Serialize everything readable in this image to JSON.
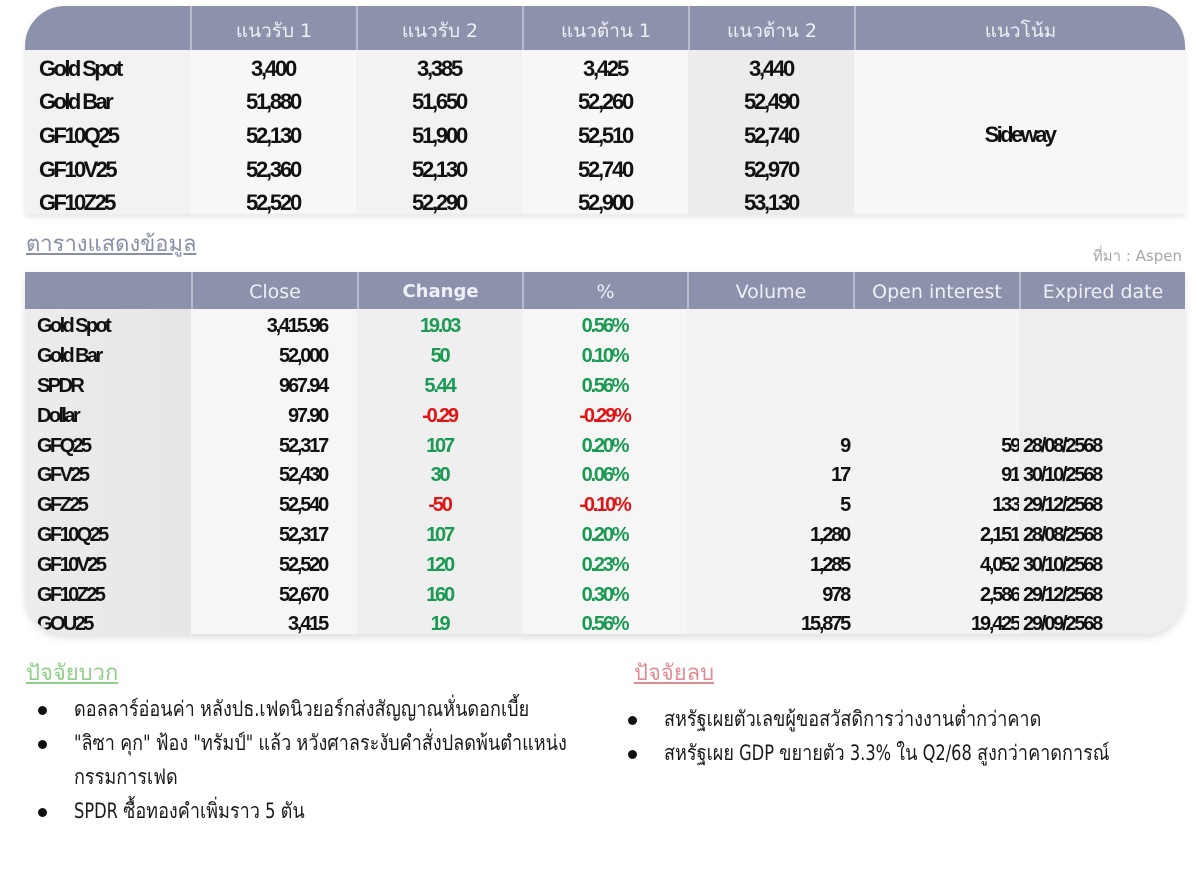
{
  "levels_table": {
    "headers": [
      "",
      "แนวรับ 1",
      "แนวรับ 2",
      "แนวต้าน 1",
      "แนวต้าน 2",
      "แนวโน้ม"
    ],
    "rows": [
      {
        "name": "Gold Spot",
        "support1": "3,400",
        "support2": "3,385",
        "resistance1": "3,425",
        "resistance2": "3,440"
      },
      {
        "name": "Gold Bar",
        "support1": "51,880",
        "support2": "51,650",
        "resistance1": "52,260",
        "resistance2": "52,490"
      },
      {
        "name": "GF10Q25",
        "support1": "52,130",
        "support2": "51,900",
        "resistance1": "52,510",
        "resistance2": "52,740"
      },
      {
        "name": "GF10V25",
        "support1": "52,360",
        "support2": "52,130",
        "resistance1": "52,740",
        "resistance2": "52,970"
      },
      {
        "name": "GF10Z25",
        "support1": "52,520",
        "support2": "52,290",
        "resistance1": "52,900",
        "resistance2": "53,130"
      }
    ],
    "trend": "Sideway"
  },
  "data_section": {
    "title": "ตารางแสดงข้อมูล",
    "source": "ที่มา : Aspen"
  },
  "market_table": {
    "headers": [
      "",
      "Close",
      "Change",
      "%",
      "Volume",
      "Open interest",
      "Expired date"
    ],
    "rows": [
      {
        "name": "Gold Spot",
        "close": "3,415.96",
        "change": "19.03",
        "pct": "0.56%",
        "dir": "pos",
        "volume": "",
        "oi": "",
        "expiry": ""
      },
      {
        "name": "Gold Bar",
        "close": "52,000",
        "change": "50",
        "pct": "0.10%",
        "dir": "pos",
        "volume": "",
        "oi": "",
        "expiry": ""
      },
      {
        "name": "SPDR",
        "close": "967.94",
        "change": "5.44",
        "pct": "0.56%",
        "dir": "pos",
        "volume": "",
        "oi": "",
        "expiry": ""
      },
      {
        "name": "Dollar",
        "close": "97.90",
        "change": "-0.29",
        "pct": "-0.29%",
        "dir": "neg",
        "volume": "",
        "oi": "",
        "expiry": ""
      },
      {
        "name": "GFQ25",
        "close": "52,317",
        "change": "107",
        "pct": "0.20%",
        "dir": "pos",
        "volume": "9",
        "oi": "59",
        "expiry": "28/08/2568"
      },
      {
        "name": "GFV25",
        "close": "52,430",
        "change": "30",
        "pct": "0.06%",
        "dir": "pos",
        "volume": "17",
        "oi": "91",
        "expiry": "30/10/2568"
      },
      {
        "name": "GFZ25",
        "close": "52,540",
        "change": "-50",
        "pct": "-0.10%",
        "dir": "neg",
        "volume": "5",
        "oi": "133",
        "expiry": "29/12/2568"
      },
      {
        "name": "GF10Q25",
        "close": "52,317",
        "change": "107",
        "pct": "0.20%",
        "dir": "pos",
        "volume": "1,280",
        "oi": "2,151",
        "expiry": "28/08/2568"
      },
      {
        "name": "GF10V25",
        "close": "52,520",
        "change": "120",
        "pct": "0.23%",
        "dir": "pos",
        "volume": "1,285",
        "oi": "4,052",
        "expiry": "30/10/2568"
      },
      {
        "name": "GF10Z25",
        "close": "52,670",
        "change": "160",
        "pct": "0.30%",
        "dir": "pos",
        "volume": "978",
        "oi": "2,586",
        "expiry": "29/12/2568"
      },
      {
        "name": "GOU25",
        "close": "3,415",
        "change": "19",
        "pct": "0.56%",
        "dir": "pos",
        "volume": "15,875",
        "oi": "19,425",
        "expiry": "29/09/2568"
      }
    ]
  },
  "positive_factors": {
    "title": "ปัจจัยบวก",
    "items": [
      "ดอลลาร์อ่อนค่า หลังปธ.เฟดนิวยอร์กส่งสัญญาณหั่นดอกเบี้ย",
      "\"ลิซา คุก\" ฟ้อง \"ทรัมป์\" แล้ว หวังศาลระงับคำสั่งปลดพ้นตำแหน่งกรรมการเฟด",
      "SPDR ซื้อทองคำเพิ่มราว 5 ตัน"
    ]
  },
  "negative_factors": {
    "title": "ปัจจัยลบ",
    "items": [
      "สหรัฐเผยตัวเลขผู้ขอสวัสดิการว่างงานต่ำกว่าคาด",
      "สหรัฐเผย GDP ขยายตัว 3.3% ใน Q2/68 สูงกว่าคาดการณ์"
    ]
  },
  "colors": {
    "header_bg": "#8c92ab",
    "positive": "#1a9a52",
    "negative": "#e01414",
    "positive_title": "#8fcf8a",
    "negative_title": "#e38b93"
  }
}
